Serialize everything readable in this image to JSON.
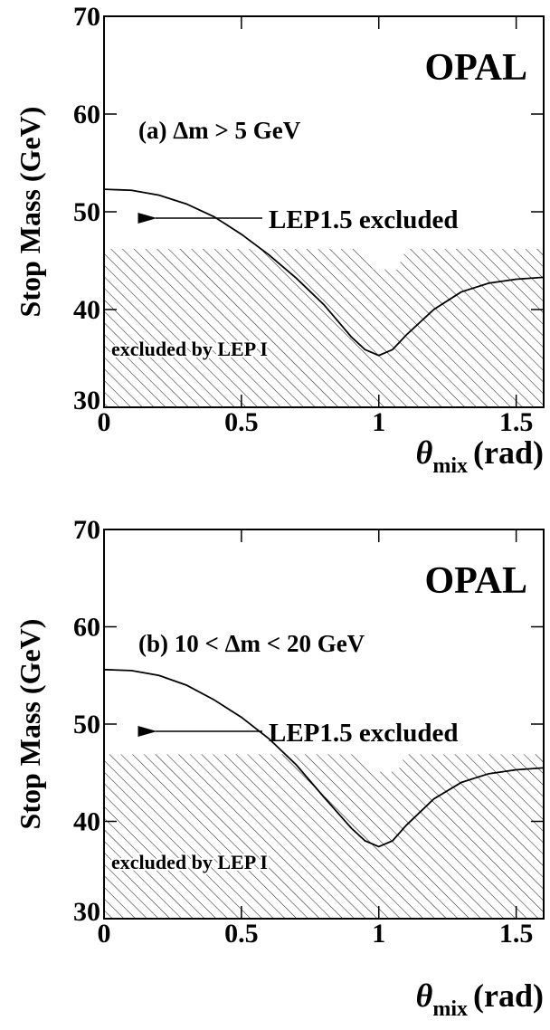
{
  "chart_data": [
    {
      "type": "line",
      "experiment": "OPAL",
      "panel_label": "(a) Δm > 5 GeV",
      "arrow_label": "LEP1.5 excluded",
      "region_label": "excluded by LEP I",
      "y_label": "Stop Mass (GeV)",
      "x_label": {
        "symbol": "θ",
        "subscript": "mix",
        "unit": "(rad)"
      },
      "xlim": [
        0,
        1.6
      ],
      "ylim": [
        30,
        70
      ],
      "xticks": [
        0,
        0.5,
        1,
        1.5
      ],
      "yticks": [
        30,
        40,
        50,
        60,
        70
      ],
      "x": [
        0,
        0.1,
        0.2,
        0.3,
        0.4,
        0.5,
        0.6,
        0.7,
        0.8,
        0.9,
        0.95,
        1.0,
        1.05,
        1.1,
        1.2,
        1.3,
        1.4,
        1.5,
        1.6
      ],
      "series": [
        {
          "color": "#000000",
          "values": [
            52.3,
            52.2,
            51.7,
            50.8,
            49.5,
            47.7,
            45.6,
            43.2,
            40.5,
            37.2,
            35.9,
            35.3,
            35.9,
            37.4,
            40.0,
            41.8,
            42.7,
            43.1,
            43.3
          ]
        }
      ],
      "excluded_region": {
        "x": [
          0,
          0.93,
          0.95,
          0.98,
          1.07,
          1.08,
          1.1,
          1.6
        ],
        "values": [
          46.2,
          46.2,
          45.3,
          44.1,
          44.1,
          45.0,
          46.2,
          46.2
        ]
      }
    },
    {
      "type": "line",
      "experiment": "OPAL",
      "panel_label": "(b) 10 < Δm < 20 GeV",
      "arrow_label": "LEP1.5 excluded",
      "region_label": "excluded by LEP I",
      "y_label": "Stop Mass (GeV)",
      "x_label": {
        "symbol": "θ",
        "subscript": "mix",
        "unit": "(rad)"
      },
      "xlim": [
        0,
        1.6
      ],
      "ylim": [
        30,
        70
      ],
      "xticks": [
        0,
        0.5,
        1,
        1.5
      ],
      "yticks": [
        30,
        40,
        50,
        60,
        70
      ],
      "x": [
        0,
        0.1,
        0.2,
        0.3,
        0.4,
        0.5,
        0.6,
        0.7,
        0.8,
        0.9,
        0.95,
        1.0,
        1.05,
        1.1,
        1.2,
        1.3,
        1.4,
        1.5,
        1.6
      ],
      "series": [
        {
          "color": "#000000",
          "values": [
            55.6,
            55.5,
            55.0,
            54.0,
            52.5,
            50.7,
            48.5,
            45.8,
            42.5,
            39.3,
            38.0,
            37.4,
            38.0,
            39.6,
            42.3,
            44.0,
            44.9,
            45.3,
            45.5
          ]
        }
      ],
      "excluded_region": {
        "x": [
          0,
          0.93,
          0.95,
          0.98,
          1.07,
          1.08,
          1.1,
          1.6
        ],
        "values": [
          46.9,
          46.9,
          46.0,
          45.1,
          45.1,
          46.0,
          46.9,
          46.9
        ]
      }
    }
  ]
}
